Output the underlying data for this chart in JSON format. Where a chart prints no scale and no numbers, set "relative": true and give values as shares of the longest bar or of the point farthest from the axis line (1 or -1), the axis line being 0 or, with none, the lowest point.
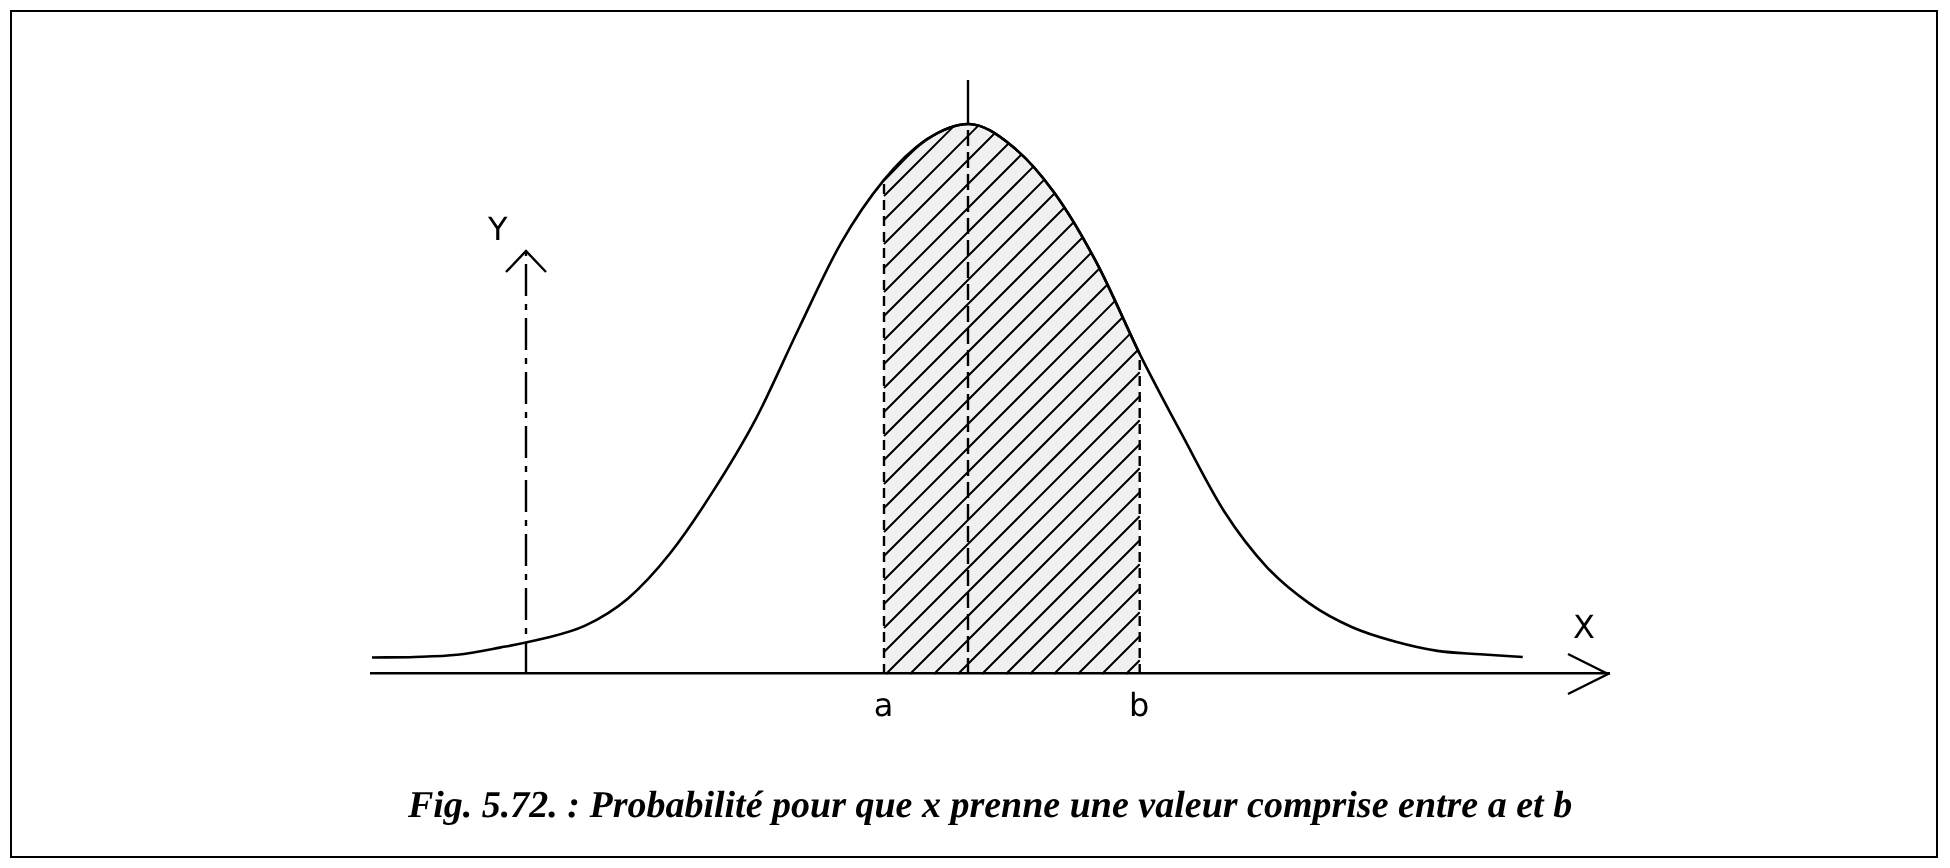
{
  "chart_data": {
    "type": "line",
    "title": "Fig. 5.72. : Probabilité pour que x prenne une valeur comprise entre a et b",
    "xlabel": "X",
    "ylabel": "Y",
    "relative": true,
    "categories": [
      null,
      null,
      null,
      null,
      null,
      null,
      null,
      null,
      null,
      null,
      null,
      null,
      "a",
      null,
      null,
      null,
      null,
      null,
      "b",
      null,
      null,
      null,
      null,
      null,
      null,
      null,
      null,
      null,
      null,
      null
    ],
    "series": [
      {
        "type": "line",
        "color": "#000000",
        "values": [
          0.03,
          0.031,
          0.035,
          0.048,
          0.064,
          0.088,
          0.137,
          0.22,
          0.332,
          0.463,
          0.626,
          0.783,
          0.897,
          0.971,
          1,
          0.961,
          0.876,
          0.748,
          0.584,
          0.436,
          0.295,
          0.194,
          0.128,
          0.085,
          0.059,
          0.042,
          0.036,
          0.031,
          null,
          null
        ]
      },
      {
        "type": "area",
        "color": "#000000",
        "values": [
          null,
          null,
          null,
          null,
          null,
          null,
          null,
          null,
          null,
          null,
          null,
          null,
          0.897,
          0.971,
          1,
          0.961,
          0.876,
          0.748,
          0.584,
          null,
          null,
          null,
          null,
          null,
          null,
          null,
          null,
          null,
          null,
          null
        ]
      }
    ]
  }
}
